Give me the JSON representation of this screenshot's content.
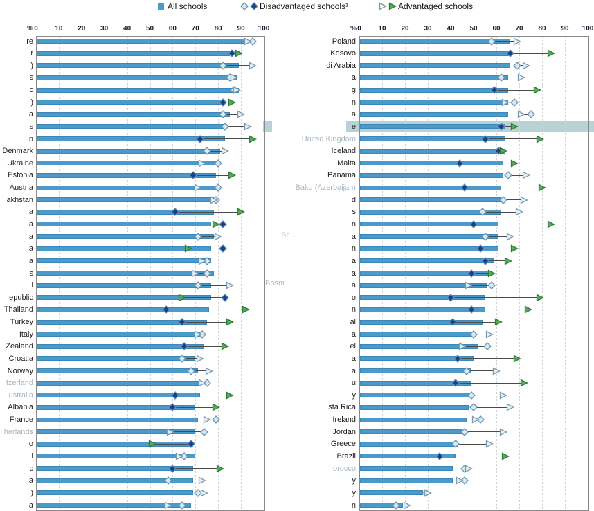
{
  "legend": {
    "all_label": "All schools",
    "disadvantaged_label": "Disadvantaged schools¹",
    "advantaged_label": "Advantaged schools"
  },
  "colors": {
    "bar": "#4b9acc",
    "bar_border": "#3a87b8",
    "dis_open_fill": "#d5eaf6",
    "dis_open_border": "#6d93ab",
    "dis_filled_fill": "#1e3f7d",
    "dis_filled_border": "#5d8fc4",
    "adv_open_fill": "#e2eff7",
    "adv_open_border": "#7e9cb0",
    "adv_filled_fill": "#57ab57",
    "adv_filled_border": "#2f7d36",
    "legend_open_triangle_border": "#6fa376",
    "connector": "#4a4a4a",
    "highlight_band": "#b7d3d6",
    "axis_text": "#1c1c2e",
    "grid": "#cdd3d6",
    "border": "#8a8a8a"
  },
  "chart_data": {
    "type": "bar",
    "orientation": "horizontal",
    "xlim": [
      0,
      100
    ],
    "grid": "dotted-vertical-every-10",
    "legend_position": "top",
    "axis": {
      "prefix": "%",
      "ticks": [
        0,
        10,
        20,
        30,
        40,
        50,
        60,
        70,
        80,
        90,
        100
      ]
    },
    "series_names": [
      "All schools",
      "Disadvantaged schools",
      "Advantaged schools"
    ],
    "note": "dis_filled/adv_filled=true means dark/solid marker variant; false means open/light marker. Labels are the visible (often clipped) fragments; faded=true means text rendered pale in source.",
    "highlight_band": {
      "segments": [
        [
          380,
          393
        ],
        [
          500,
          858
        ]
      ],
      "y": 175,
      "height": 15,
      "row": "right panel row 8 (ends with 'e')"
    },
    "floating_fragments": [
      {
        "text": "Br",
        "x": 406,
        "y": 334
      },
      {
        "text": "Bosni",
        "x": 383,
        "y": 403
      }
    ],
    "panels": [
      {
        "side": "left",
        "rows": [
          {
            "label": "re",
            "all": 92,
            "dis": 95,
            "dis_filled": false,
            "adv": 93,
            "adv_filled": false
          },
          {
            "label": "r",
            "all": 85,
            "dis": 86,
            "dis_filled": true,
            "adv": 89,
            "adv_filled": true
          },
          {
            "label": ")",
            "all": 89,
            "dis": 82,
            "dis_filled": false,
            "adv": 95,
            "adv_filled": false
          },
          {
            "label": "s",
            "all": 88,
            "dis": 85,
            "dis_filled": false,
            "adv": 87,
            "adv_filled": false
          },
          {
            "label": "c",
            "all": 89,
            "dis": 87,
            "dis_filled": false,
            "adv": 88,
            "adv_filled": false
          },
          {
            "label": ")",
            "all": 83,
            "dis": 82,
            "dis_filled": true,
            "adv": 86,
            "adv_filled": true
          },
          {
            "label": "a",
            "all": 85,
            "dis": 82,
            "dis_filled": false,
            "adv": 90,
            "adv_filled": false
          },
          {
            "label": "s",
            "all": 84,
            "dis": 83,
            "dis_filled": false,
            "adv": 93,
            "adv_filled": false
          },
          {
            "label": "n",
            "all": 83,
            "dis": 72,
            "dis_filled": true,
            "adv": 95,
            "adv_filled": true
          },
          {
            "label": "Denmark",
            "all": 81,
            "dis": 75,
            "dis_filled": false,
            "adv": 83,
            "adv_filled": false
          },
          {
            "label": "Ukraine",
            "all": 79,
            "dis": 80,
            "dis_filled": false,
            "adv": 73,
            "adv_filled": false
          },
          {
            "label": "Estonia",
            "all": 79,
            "dis": 69,
            "dis_filled": true,
            "adv": 86,
            "adv_filled": true
          },
          {
            "label": "Austria",
            "all": 79,
            "dis": 80,
            "dis_filled": false,
            "adv": 71,
            "adv_filled": false
          },
          {
            "label": "akhstan",
            "all": 78,
            "dis": 79,
            "dis_filled": false,
            "adv": 78,
            "adv_filled": false
          },
          {
            "label": "a",
            "all": 78,
            "dis": 61,
            "dis_filled": true,
            "adv": 90,
            "adv_filled": true
          },
          {
            "label": "a",
            "all": 77,
            "dis": 82,
            "dis_filled": true,
            "adv": 79,
            "adv_filled": true
          },
          {
            "label": "a",
            "all": 78,
            "dis": 71,
            "dis_filled": false,
            "adv": 80,
            "adv_filled": false
          },
          {
            "label": "a",
            "all": 77,
            "dis": 82,
            "dis_filled": true,
            "adv": 67,
            "adv_filled": true
          },
          {
            "label": "a",
            "all": 77,
            "dis": 75,
            "dis_filled": false,
            "adv": 73,
            "adv_filled": false
          },
          {
            "label": "s",
            "all": 78,
            "dis": 75,
            "dis_filled": false,
            "adv": 70,
            "adv_filled": false
          },
          {
            "label": "i",
            "all": 77,
            "dis": 71,
            "dis_filled": false,
            "adv": 85,
            "adv_filled": false
          },
          {
            "label": "epublic",
            "all": 77,
            "dis": 83,
            "dis_filled": true,
            "adv": 64,
            "adv_filled": true
          },
          {
            "label": "Thailand",
            "all": 76,
            "dis": 57,
            "dis_filled": true,
            "adv": 92,
            "adv_filled": true
          },
          {
            "label": "Turkey",
            "all": 75,
            "dis": 64,
            "dis_filled": true,
            "adv": 85,
            "adv_filled": true
          },
          {
            "label": "Italy",
            "all": 74,
            "dis": 73,
            "dis_filled": false,
            "adv": 71,
            "adv_filled": false
          },
          {
            "label": "Zealand",
            "all": 74,
            "dis": 65,
            "dis_filled": true,
            "adv": 83,
            "adv_filled": true
          },
          {
            "label": "Croatia",
            "all": 70,
            "dis": 64,
            "dis_filled": false,
            "adv": 72,
            "adv_filled": false
          },
          {
            "label": "Norway",
            "all": 71,
            "dis": 68,
            "dis_filled": false,
            "adv": 76,
            "adv_filled": false
          },
          {
            "label": "tzerland",
            "faded": true,
            "all": 72,
            "dis": 75,
            "dis_filled": false,
            "adv": 73,
            "adv_filled": false
          },
          {
            "label": "ustralia",
            "faded": true,
            "all": 72,
            "dis": 61,
            "dis_filled": true,
            "adv": 85,
            "adv_filled": true
          },
          {
            "label": "Albania",
            "all": 70,
            "dis": 60,
            "dis_filled": true,
            "adv": 79,
            "adv_filled": true
          },
          {
            "label": "France",
            "all": 71,
            "dis": 79,
            "dis_filled": false,
            "adv": 75,
            "adv_filled": false
          },
          {
            "label": "herlands",
            "faded": true,
            "all": 70,
            "dis": 74,
            "dis_filled": false,
            "adv": 59,
            "adv_filled": false
          },
          {
            "label": "o",
            "all": 69,
            "dis": 68,
            "dis_filled": true,
            "adv": 51,
            "adv_filled": true
          },
          {
            "label": "i",
            "all": 70,
            "dis": 65,
            "dis_filled": false,
            "adv": 63,
            "adv_filled": false
          },
          {
            "label": "c",
            "all": 69,
            "dis": 60,
            "dis_filled": true,
            "adv": 81,
            "adv_filled": true
          },
          {
            "label": "a",
            "all": 69,
            "dis": 58,
            "dis_filled": false,
            "adv": 73,
            "adv_filled": false
          },
          {
            "label": ")",
            "all": 69,
            "dis": 71,
            "dis_filled": false,
            "adv": 74,
            "adv_filled": false
          },
          {
            "label": "a",
            "all": 68,
            "dis": 64,
            "dis_filled": false,
            "adv": 58,
            "adv_filled": false
          }
        ]
      },
      {
        "side": "right",
        "rows": [
          {
            "label": "Poland",
            "all": 66,
            "dis": 58,
            "dis_filled": false,
            "adv": 69,
            "adv_filled": false
          },
          {
            "label": "Kosovo",
            "all": 66,
            "dis": 66,
            "dis_filled": true,
            "adv": 84,
            "adv_filled": true
          },
          {
            "label": "di Arabia",
            "all": 66,
            "dis": 69,
            "dis_filled": false,
            "adv": 73,
            "adv_filled": false
          },
          {
            "label": "a",
            "all": 65,
            "dis": 62,
            "dis_filled": false,
            "adv": 71,
            "adv_filled": false
          },
          {
            "label": "g",
            "all": 65,
            "dis": 59,
            "dis_filled": true,
            "adv": 78,
            "adv_filled": true
          },
          {
            "label": "n",
            "all": 65,
            "dis": 68,
            "dis_filled": false,
            "adv": 64,
            "adv_filled": false
          },
          {
            "label": "a",
            "all": 65,
            "dis": 75,
            "dis_filled": false,
            "adv": 71,
            "adv_filled": false
          },
          {
            "label": "e",
            "highlight": true,
            "all": 64,
            "dis": 62,
            "dis_filled": true,
            "adv": 68,
            "adv_filled": true
          },
          {
            "label": "United Kingdom",
            "faded": true,
            "all": 64,
            "dis": 55,
            "dis_filled": true,
            "adv": 79,
            "adv_filled": true
          },
          {
            "label": "Iceland",
            "all": 64,
            "dis": 61,
            "dis_filled": true,
            "adv": 63,
            "adv_filled": true
          },
          {
            "label": "Malta",
            "all": 63,
            "dis": 44,
            "dis_filled": true,
            "adv": 68,
            "adv_filled": true
          },
          {
            "label": "Panama",
            "all": 63,
            "dis": 65,
            "dis_filled": false,
            "adv": 73,
            "adv_filled": false
          },
          {
            "label": "Baku (Azerbaijan)",
            "faded": true,
            "all": 62,
            "dis": 46,
            "dis_filled": true,
            "adv": 80,
            "adv_filled": true
          },
          {
            "label": "d",
            "all": 62,
            "dis": 63,
            "dis_filled": false,
            "adv": 72,
            "adv_filled": false
          },
          {
            "label": "s",
            "all": 62,
            "dis": 54,
            "dis_filled": false,
            "adv": 70,
            "adv_filled": false
          },
          {
            "label": "n",
            "all": 61,
            "dis": 50,
            "dis_filled": true,
            "adv": 84,
            "adv_filled": true
          },
          {
            "label": "a",
            "all": 61,
            "dis": 55,
            "dis_filled": false,
            "adv": 66,
            "adv_filled": false
          },
          {
            "label": "n",
            "all": 61,
            "dis": 53,
            "dis_filled": true,
            "adv": 68,
            "adv_filled": true
          },
          {
            "label": "a",
            "all": 59,
            "dis": 55,
            "dis_filled": true,
            "adv": 65,
            "adv_filled": true
          },
          {
            "label": "a",
            "all": 58,
            "dis": 49,
            "dis_filled": true,
            "adv": 58,
            "adv_filled": true
          },
          {
            "label": "a",
            "all": 56,
            "dis": 58,
            "dis_filled": false,
            "adv": 48,
            "adv_filled": false
          },
          {
            "label": "o",
            "all": 55,
            "dis": 40,
            "dis_filled": true,
            "adv": 79,
            "adv_filled": true
          },
          {
            "label": "n",
            "all": 55,
            "dis": 49,
            "dis_filled": true,
            "adv": 74,
            "adv_filled": true
          },
          {
            "label": "al",
            "all": 54,
            "dis": 41,
            "dis_filled": true,
            "adv": 61,
            "adv_filled": true
          },
          {
            "label": "a",
            "all": 49,
            "dis": 50,
            "dis_filled": false,
            "adv": 57,
            "adv_filled": false
          },
          {
            "label": "el",
            "all": 52,
            "dis": 56,
            "dis_filled": false,
            "adv": 45,
            "adv_filled": false
          },
          {
            "label": "a",
            "all": 50,
            "dis": 43,
            "dis_filled": true,
            "adv": 69,
            "adv_filled": true
          },
          {
            "label": "a",
            "all": 49,
            "dis": 47,
            "dis_filled": false,
            "adv": 60,
            "adv_filled": false
          },
          {
            "label": "u",
            "all": 49,
            "dis": 42,
            "dis_filled": true,
            "adv": 72,
            "adv_filled": true
          },
          {
            "label": "y",
            "all": 48,
            "dis": 49,
            "dis_filled": false,
            "adv": 63,
            "adv_filled": false
          },
          {
            "label": "sta Rica",
            "all": 48,
            "dis": 50,
            "dis_filled": false,
            "adv": 66,
            "adv_filled": false
          },
          {
            "label": "Ireland",
            "all": 47,
            "dis": 53,
            "dis_filled": false,
            "adv": 51,
            "adv_filled": false
          },
          {
            "label": "Jordan",
            "all": 45,
            "dis": 46,
            "dis_filled": false,
            "adv": 63,
            "adv_filled": false
          },
          {
            "label": "Greece",
            "all": 43,
            "dis": 42,
            "dis_filled": false,
            "adv": 57,
            "adv_filled": false
          },
          {
            "label": "Brazil",
            "all": 42,
            "dis": 35,
            "dis_filled": true,
            "adv": 64,
            "adv_filled": true
          },
          {
            "label": "orocco",
            "faded": true,
            "all": 41,
            "dis": 46,
            "dis_filled": false,
            "adv": 48,
            "adv_filled": false
          },
          {
            "label": "y",
            "all": 41,
            "dis": 46,
            "dis_filled": false,
            "adv": 44,
            "adv_filled": false
          },
          {
            "label": "y",
            "all": 28,
            "dis": 29,
            "dis_filled": false,
            "adv": 30,
            "adv_filled": false
          },
          {
            "label": "n",
            "all": 19,
            "dis": 16,
            "dis_filled": false,
            "adv": 21,
            "adv_filled": false
          }
        ]
      }
    ]
  }
}
